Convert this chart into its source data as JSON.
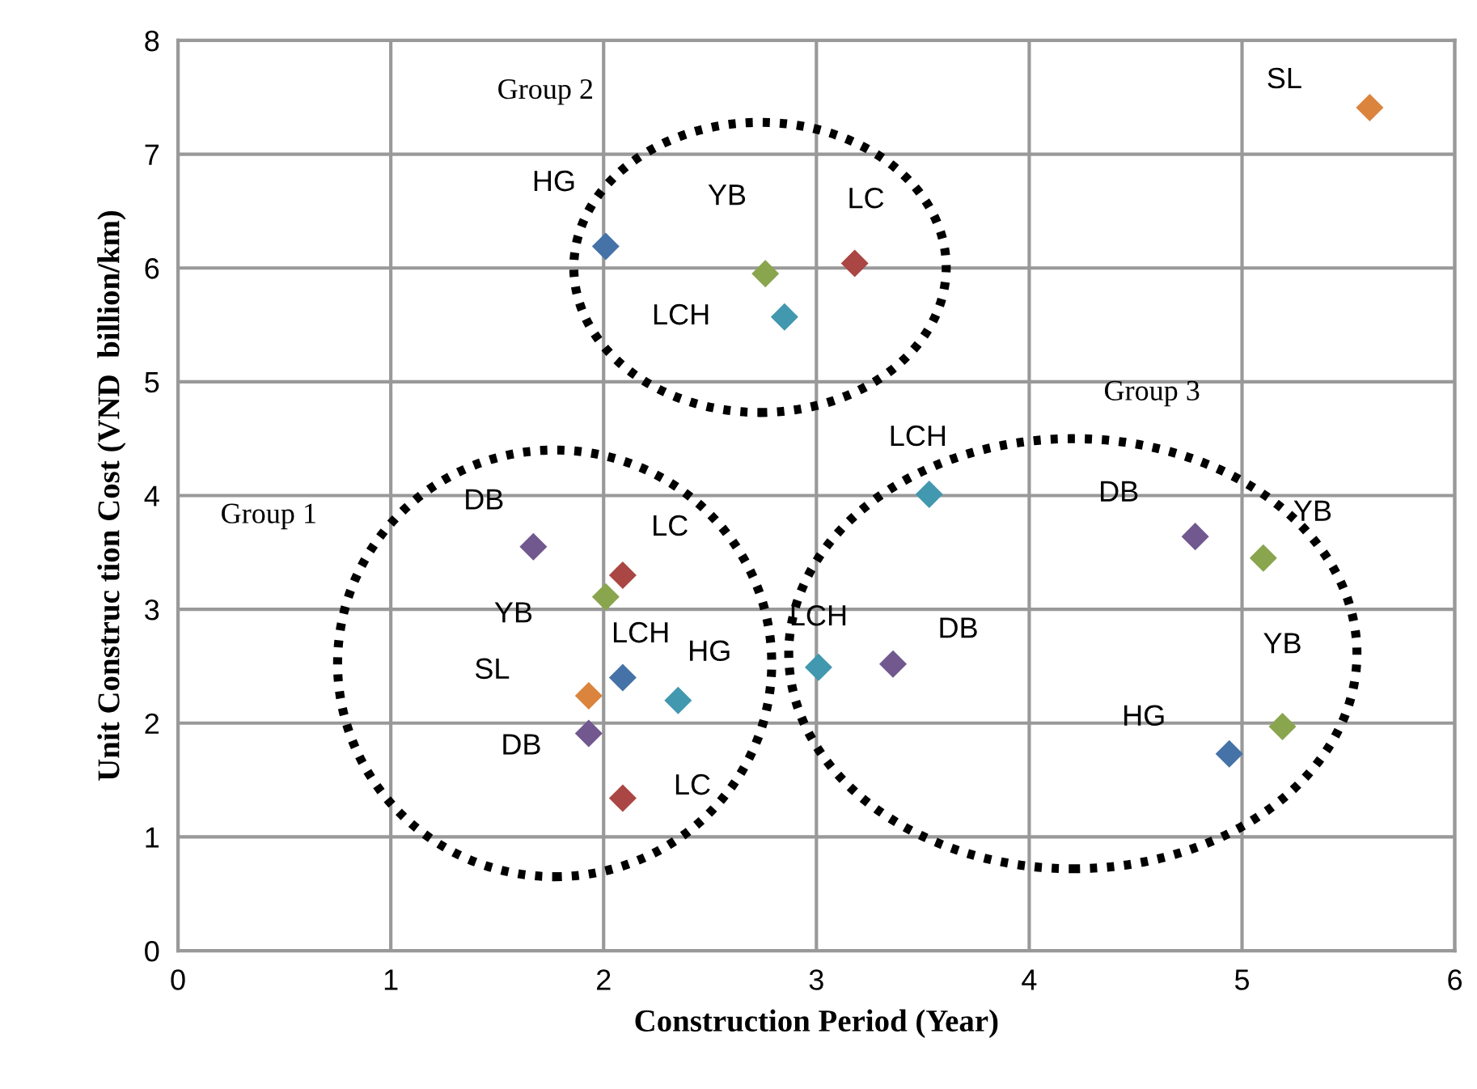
{
  "chart_data": {
    "type": "scatter",
    "xlabel": "Construction Period (Year)",
    "ylabel": "Unit Construc tion Cost (VND  billion/km)",
    "x": [
      2.01,
      2.76,
      3.18,
      2.85,
      5.6,
      1.67,
      2.09,
      2.01,
      2.09,
      2.35,
      1.93,
      1.93,
      2.09,
      3.01,
      3.53,
      3.36,
      4.78,
      5.1,
      5.19,
      4.94
    ],
    "series": [
      {
        "values": [
          6.19,
          5.95,
          6.04,
          5.57,
          7.41,
          3.55,
          3.3,
          3.11,
          2.4,
          2.2,
          2.24,
          1.91,
          1.34,
          2.49,
          4.01,
          2.52,
          3.64,
          3.45,
          1.97,
          1.73
        ],
        "colors": [
          "#4572a7",
          "#89a54e",
          "#aa4643",
          "#4198af",
          "#db843d",
          "#71588f",
          "#aa4643",
          "#89a54e",
          "#4572a7",
          "#4198af",
          "#db843d",
          "#71588f",
          "#aa4643",
          "#4198af",
          "#4198af",
          "#71588f",
          "#71588f",
          "#89a54e",
          "#89a54e",
          "#4572a7"
        ]
      }
    ],
    "xlim": [
      0,
      6
    ],
    "xticks": [
      0,
      1,
      2,
      3,
      4,
      5,
      6
    ],
    "ylim": [
      0,
      8
    ],
    "yticks": [
      0,
      1,
      2,
      3,
      4,
      5,
      6,
      7,
      8
    ],
    "grid": true,
    "marker": "diamond",
    "annotations": [
      "Group 1",
      "Group 2",
      "Group 3",
      {
        "text": "HG",
        "x": 2.01,
        "y": 6.19
      },
      {
        "text": "YB",
        "x": 2.76,
        "y": 5.95
      },
      {
        "text": "LC",
        "x": 3.18,
        "y": 6.04
      },
      {
        "text": "LCH",
        "x": 2.85,
        "y": 5.57
      },
      {
        "text": "SL",
        "x": 5.6,
        "y": 7.41
      },
      {
        "text": "DB",
        "x": 1.67,
        "y": 3.55
      },
      {
        "text": "LC",
        "x": 2.09,
        "y": 3.3
      },
      {
        "text": "YB",
        "x": 2.01,
        "y": 3.11
      },
      {
        "text": "LCH",
        "x": 2.09,
        "y": 2.4
      },
      {
        "text": "HG",
        "x": 2.35,
        "y": 2.2
      },
      {
        "text": "SL",
        "x": 1.93,
        "y": 2.24
      },
      {
        "text": "DB",
        "x": 1.93,
        "y": 1.91
      },
      {
        "text": "LC",
        "x": 2.09,
        "y": 1.34
      },
      {
        "text": "LCH",
        "x": 3.01,
        "y": 2.49
      },
      {
        "text": "LCH",
        "x": 3.53,
        "y": 4.01
      },
      {
        "text": "DB",
        "x": 3.36,
        "y": 2.52
      },
      {
        "text": "DB",
        "x": 4.78,
        "y": 3.64
      },
      {
        "text": "YB",
        "x": 5.1,
        "y": 3.45
      },
      {
        "text": "YB",
        "x": 5.19,
        "y": 1.97
      },
      {
        "text": "HG",
        "x": 4.94,
        "y": 1.73
      }
    ]
  }
}
